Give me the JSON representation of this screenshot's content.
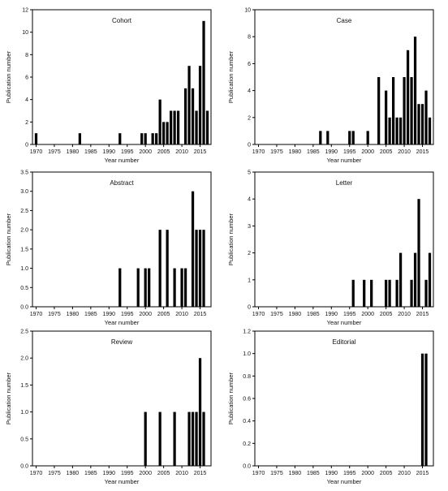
{
  "chart_data": [
    {
      "type": "bar",
      "title": "Cohort",
      "xlabel": "Year number",
      "ylabel": "Publication number",
      "xlim": [
        1969,
        2018
      ],
      "ylim": [
        0,
        12
      ],
      "yticks": [
        "0",
        "2",
        "4",
        "6",
        "8",
        "10",
        "12"
      ],
      "xticks": [
        "1970",
        "1975",
        "1980",
        "1985",
        "1990",
        "1995",
        "2000",
        "2005",
        "2010",
        "2015"
      ],
      "x": [
        1970,
        1982,
        1993,
        1999,
        2000,
        2002,
        2003,
        2004,
        2005,
        2006,
        2007,
        2008,
        2009,
        2011,
        2012,
        2013,
        2014,
        2015,
        2016,
        2017
      ],
      "values": [
        1,
        1,
        1,
        1,
        1,
        1,
        1,
        4,
        2,
        2,
        3,
        3,
        3,
        5,
        7,
        5,
        3,
        7,
        11,
        3
      ]
    },
    {
      "type": "bar",
      "title": "Case",
      "xlabel": "Year number",
      "ylabel": "Publication number",
      "xlim": [
        1969,
        2018
      ],
      "ylim": [
        0,
        10
      ],
      "yticks": [
        "0",
        "2",
        "4",
        "6",
        "8",
        "10"
      ],
      "xticks": [
        "1970",
        "1975",
        "1980",
        "1985",
        "1990",
        "1995",
        "2000",
        "2005",
        "2010",
        "2015"
      ],
      "x": [
        1987,
        1989,
        1995,
        1996,
        2000,
        2003,
        2005,
        2006,
        2007,
        2008,
        2009,
        2010,
        2011,
        2012,
        2013,
        2014,
        2015,
        2016,
        2017
      ],
      "values": [
        1,
        1,
        1,
        1,
        1,
        5,
        4,
        2,
        5,
        2,
        2,
        5,
        7,
        5,
        8,
        3,
        3,
        4,
        2
      ]
    },
    {
      "type": "bar",
      "title": "Abstract",
      "xlabel": "Year number",
      "ylabel": "Publication number",
      "xlim": [
        1969,
        2018
      ],
      "ylim": [
        0,
        3.5
      ],
      "yticks": [
        "0.0",
        "0.5",
        "1.0",
        "1.5",
        "2.0",
        "2.5",
        "3.0",
        "3.5"
      ],
      "xticks": [
        "1970",
        "1975",
        "1980",
        "1985",
        "1990",
        "1995",
        "2000",
        "2005",
        "2010",
        "2015"
      ],
      "x": [
        1993,
        1998,
        2000,
        2001,
        2004,
        2006,
        2008,
        2010,
        2011,
        2013,
        2014,
        2015,
        2016
      ],
      "values": [
        1,
        1,
        1,
        1,
        2,
        2,
        1,
        1,
        1,
        3,
        2,
        2,
        2
      ]
    },
    {
      "type": "bar",
      "title": "Letter",
      "xlabel": "Year number",
      "ylabel": "Publication number",
      "xlim": [
        1969,
        2018
      ],
      "ylim": [
        0,
        5
      ],
      "yticks": [
        "0",
        "1",
        "2",
        "3",
        "4",
        "5"
      ],
      "xticks": [
        "1970",
        "1975",
        "1980",
        "1985",
        "1990",
        "1995",
        "2000",
        "2005",
        "2010",
        "2015"
      ],
      "x": [
        1996,
        1999,
        2001,
        2005,
        2006,
        2008,
        2009,
        2012,
        2013,
        2014,
        2016,
        2017
      ],
      "values": [
        1,
        1,
        1,
        1,
        1,
        1,
        2,
        1,
        2,
        4,
        1,
        2
      ]
    },
    {
      "type": "bar",
      "title": "Review",
      "xlabel": "Year number",
      "ylabel": "Publication number",
      "xlim": [
        1969,
        2018
      ],
      "ylim": [
        0,
        2.5
      ],
      "yticks": [
        "0.0",
        "0.5",
        "1.0",
        "1.5",
        "2.0",
        "2.5"
      ],
      "xticks": [
        "1970",
        "1975",
        "1980",
        "1985",
        "1990",
        "1995",
        "2000",
        "2005",
        "2010",
        "2015"
      ],
      "x": [
        2000,
        2004,
        2008,
        2012,
        2013,
        2014,
        2015,
        2016
      ],
      "values": [
        1,
        1,
        1,
        1,
        1,
        1,
        2,
        1
      ]
    },
    {
      "type": "bar",
      "title": "Editorial",
      "xlabel": "Year number",
      "ylabel": "Publication number",
      "xlim": [
        1969,
        2018
      ],
      "ylim": [
        0,
        1.2
      ],
      "yticks": [
        "0.0",
        "0.2",
        "0.4",
        "0.6",
        "0.8",
        "1.0",
        "1.2"
      ],
      "xticks": [
        "1970",
        "1975",
        "1980",
        "1985",
        "1990",
        "1995",
        "2000",
        "2005",
        "2010",
        "2015"
      ],
      "x": [
        2015,
        2016
      ],
      "values": [
        1,
        1
      ]
    }
  ]
}
